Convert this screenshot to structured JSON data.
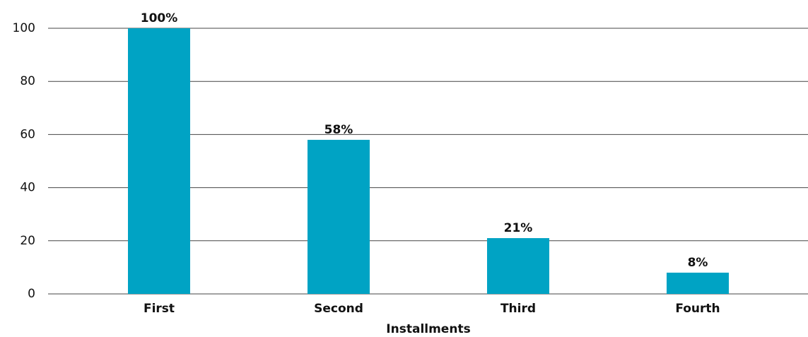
{
  "chart_data": {
    "type": "bar",
    "x_label": "Installments",
    "categories": [
      "First",
      "Second",
      "Third",
      "Fourth"
    ],
    "values": [
      100,
      58,
      21,
      8
    ],
    "value_labels": [
      "100%",
      "58%",
      "21%",
      "8%"
    ],
    "color": "#00a3c4",
    "ylim": [
      0,
      100
    ],
    "yticks": [
      0,
      20,
      40,
      60,
      80,
      100
    ],
    "grid": true
  }
}
